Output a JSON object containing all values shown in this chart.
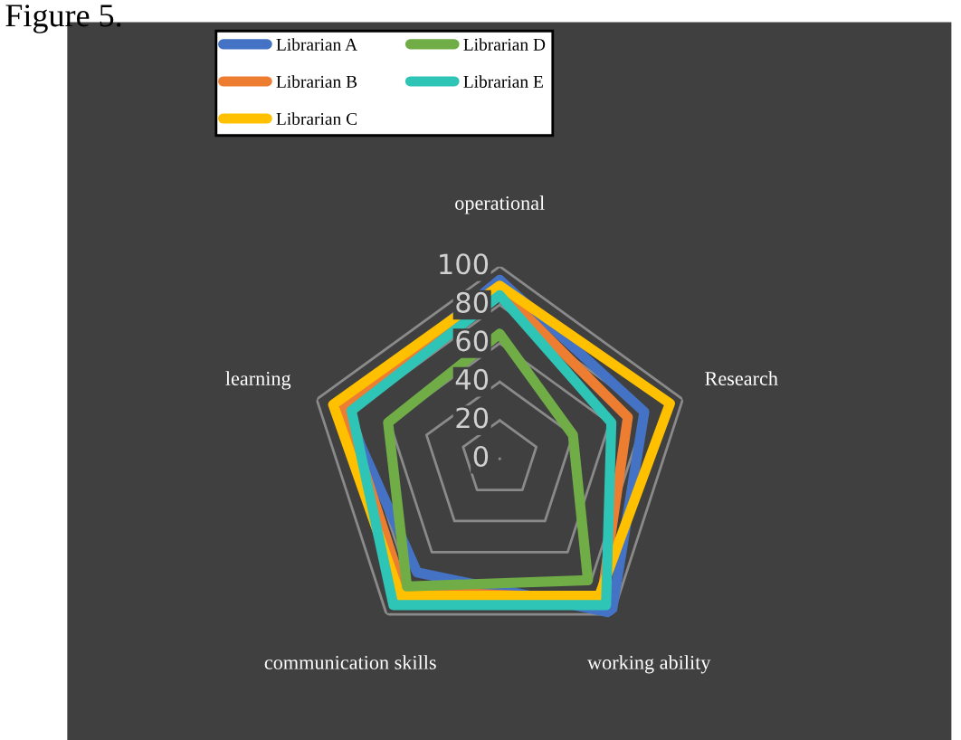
{
  "chart_data": {
    "type": "radar",
    "annotations": [
      "Figure 5."
    ],
    "categories": [
      "operational",
      "Research",
      "working ability",
      "communication skills",
      "learning"
    ],
    "ylim": [
      0,
      100
    ],
    "yticks": [
      0,
      20,
      40,
      60,
      80,
      100
    ],
    "grid": true,
    "legend": "top",
    "line_style": "solid",
    "marker": "none",
    "series": [
      {
        "name": "Librarian A",
        "color": "#4472c4",
        "values": [
          93,
          79,
          99,
          73,
          85
        ]
      },
      {
        "name": "Librarian B",
        "color": "#ed7d31",
        "values": [
          88,
          70,
          90,
          85,
          85
        ]
      },
      {
        "name": "Librarian C",
        "color": "#ffc000",
        "values": [
          90,
          93,
          88,
          88,
          91
        ]
      },
      {
        "name": "Librarian D",
        "color": "#70ad47",
        "values": [
          65,
          40,
          78,
          82,
          61
        ]
      },
      {
        "name": "Librarian E",
        "color": "#2ec4b6",
        "values": [
          85,
          61,
          94,
          94,
          81
        ]
      }
    ]
  }
}
